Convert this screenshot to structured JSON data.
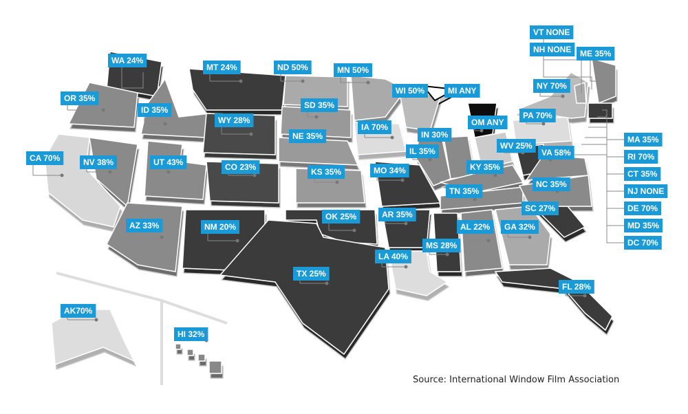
{
  "map": {
    "labels": [
      "WA 24%",
      "MT 24%",
      "ND 50%",
      "MN 50%",
      "OR 35%",
      "ID 35%",
      "SD 35%",
      "WI 50%",
      "MI ANY",
      "OM ANY",
      "WY 28%",
      "NE 35%",
      "IA 70%",
      "IN 30%",
      "PA 70%",
      "NY 70%",
      "VT NONE",
      "NH NONE",
      "ME 35%",
      "MA 35%",
      "RI 70%",
      "CT 35%",
      "NJ NONE",
      "DE 70%",
      "MD 35%",
      "DC 70%",
      "CA 70%",
      "NV 38%",
      "UT 43%",
      "CO 23%",
      "KS 35%",
      "MO 34%",
      "IL 35%",
      "KY 35%",
      "WV 25%",
      "VA 58%",
      "NC 35%",
      "TN 35%",
      "SC 27%",
      "AZ 33%",
      "NM 20%",
      "OK 25%",
      "AR 35%",
      "AL 22%",
      "GA 32%",
      "MS 28%",
      "LA 40%",
      "TX 25%",
      "FL 28%",
      "AK70%",
      "HI 32%"
    ],
    "source": "Source: International Window Film Association"
  }
}
